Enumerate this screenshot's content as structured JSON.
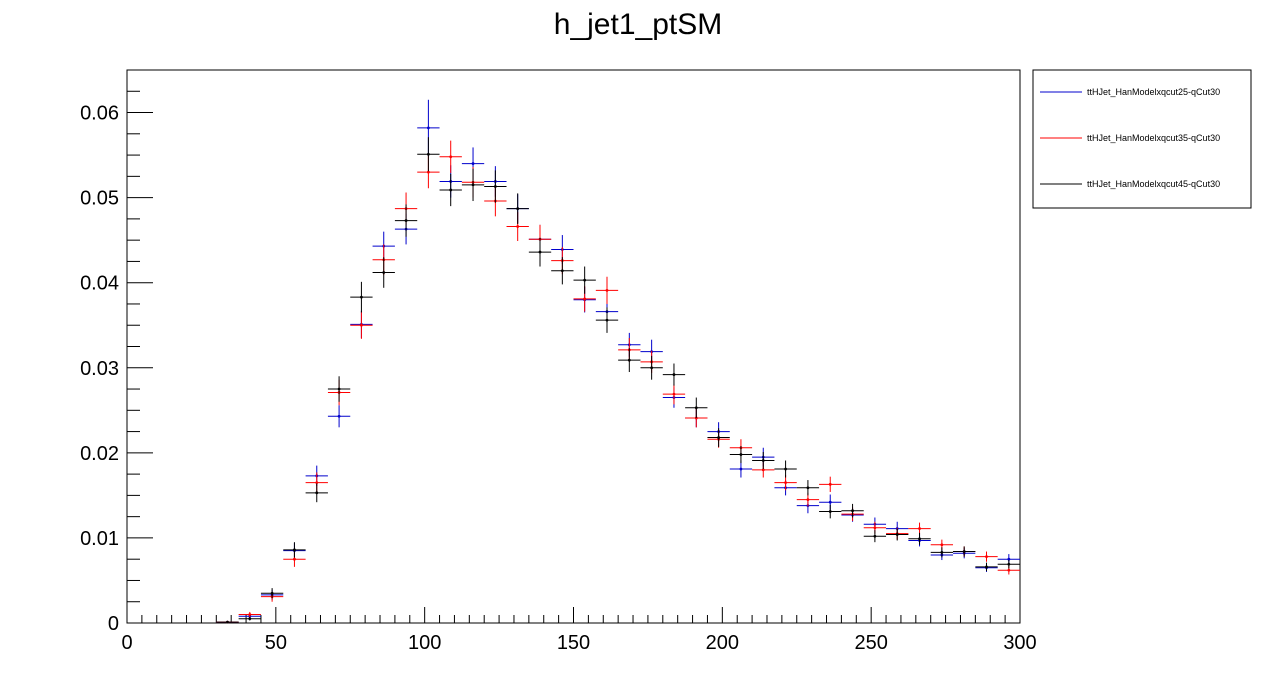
{
  "chart_data": {
    "type": "scatter",
    "title": "h_jet1_ptSM",
    "xlabel": "",
    "ylabel": "",
    "xlim": [
      0,
      300
    ],
    "ylim": [
      0,
      0.065
    ],
    "x_ticks": [
      0,
      50,
      100,
      150,
      200,
      250,
      300
    ],
    "x_tick_labels": [
      "0",
      "50",
      "100",
      "150",
      "200",
      "250",
      "300"
    ],
    "y_ticks": [
      0,
      0.01,
      0.02,
      0.03,
      0.04,
      0.05,
      0.06
    ],
    "y_tick_labels": [
      "0",
      "0.01",
      "0.02",
      "0.03",
      "0.04",
      "0.05",
      "0.06"
    ],
    "bin_width": 7.5,
    "grid": false,
    "legend_position": "right",
    "x": [
      33.75,
      41.25,
      48.75,
      56.25,
      63.75,
      71.25,
      78.75,
      86.25,
      93.75,
      101.25,
      108.75,
      116.25,
      123.75,
      131.25,
      138.75,
      146.25,
      153.75,
      161.25,
      168.75,
      176.25,
      183.75,
      191.25,
      198.75,
      206.25,
      213.75,
      221.25,
      228.75,
      236.25,
      243.75,
      251.25,
      258.75,
      266.25,
      273.75,
      281.25,
      288.75,
      296.25
    ],
    "series": [
      {
        "name": "ttHJet_HanModelxqcut25-qCut30",
        "color": "#0000cc",
        "values": [
          0.0001,
          0.0008,
          0.0033,
          0.0085,
          0.0173,
          0.0243,
          0.0351,
          0.0443,
          0.0463,
          0.0582,
          0.0519,
          0.054,
          0.0519,
          0.0487,
          0.0451,
          0.0439,
          0.038,
          0.0366,
          0.0327,
          0.0319,
          0.0265,
          0.0241,
          0.0225,
          0.0181,
          0.0195,
          0.0159,
          0.0138,
          0.0142,
          0.0127,
          0.0116,
          0.0111,
          0.0097,
          0.008,
          0.0082,
          0.0065,
          0.0075
        ],
        "errors": [
          0.0001,
          0.0003,
          0.0006,
          0.0009,
          0.0012,
          0.0013,
          0.0016,
          0.0017,
          0.0018,
          0.0033,
          0.0019,
          0.0019,
          0.0018,
          0.0017,
          0.0017,
          0.0017,
          0.0015,
          0.0015,
          0.0014,
          0.0014,
          0.0012,
          0.0011,
          0.0011,
          0.001,
          0.0011,
          0.0009,
          0.0009,
          0.0009,
          0.0008,
          0.0008,
          0.0008,
          0.0007,
          0.0006,
          0.0006,
          0.0005,
          0.0006
        ]
      },
      {
        "name": "ttHJet_HanModelxqcut35-qCut30",
        "color": "#ff0000",
        "values": [
          0.0001,
          0.001,
          0.0031,
          0.0075,
          0.0165,
          0.0271,
          0.035,
          0.0427,
          0.0487,
          0.053,
          0.0548,
          0.0518,
          0.0496,
          0.0466,
          0.0451,
          0.0426,
          0.0381,
          0.0391,
          0.0321,
          0.0307,
          0.0269,
          0.0241,
          0.0216,
          0.0206,
          0.018,
          0.0165,
          0.0145,
          0.0163,
          0.0128,
          0.0112,
          0.0105,
          0.0111,
          0.0092,
          0.0084,
          0.0078,
          0.0062
        ],
        "errors": [
          0.0001,
          0.0003,
          0.0006,
          0.0009,
          0.0012,
          0.0015,
          0.0016,
          0.0018,
          0.0019,
          0.0019,
          0.0019,
          0.0018,
          0.0018,
          0.0017,
          0.0017,
          0.0016,
          0.0015,
          0.0016,
          0.0014,
          0.0013,
          0.0012,
          0.0011,
          0.001,
          0.001,
          0.0009,
          0.0009,
          0.0008,
          0.0009,
          0.0008,
          0.0007,
          0.0007,
          0.0007,
          0.0006,
          0.0006,
          0.0006,
          0.0005
        ]
      },
      {
        "name": "ttHJet_HanModelxqcut45-qCut30",
        "color": "#000000",
        "values": [
          0.0001,
          0.0005,
          0.0035,
          0.0086,
          0.0153,
          0.0275,
          0.0383,
          0.0412,
          0.0473,
          0.0551,
          0.0509,
          0.0515,
          0.0513,
          0.0487,
          0.0436,
          0.0414,
          0.0403,
          0.0356,
          0.0309,
          0.03,
          0.0292,
          0.0253,
          0.0218,
          0.0198,
          0.0191,
          0.0181,
          0.0159,
          0.0131,
          0.0132,
          0.0102,
          0.0104,
          0.0099,
          0.0083,
          0.0084,
          0.0066,
          0.0069
        ],
        "errors": [
          0.0001,
          0.0002,
          0.0006,
          0.0009,
          0.0011,
          0.0015,
          0.0018,
          0.0018,
          0.0019,
          0.002,
          0.0019,
          0.0019,
          0.0019,
          0.0018,
          0.0017,
          0.0016,
          0.0016,
          0.0015,
          0.0014,
          0.0014,
          0.0013,
          0.0012,
          0.0011,
          0.001,
          0.001,
          0.001,
          0.0009,
          0.0008,
          0.0008,
          0.0007,
          0.0007,
          0.0007,
          0.0006,
          0.0006,
          0.0005,
          0.0005
        ]
      }
    ]
  }
}
